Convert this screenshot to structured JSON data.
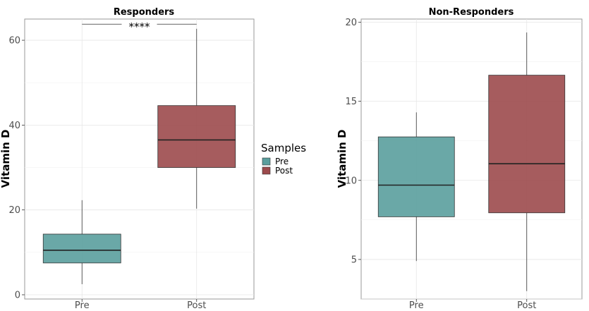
{
  "chart_data": [
    {
      "type": "boxplot",
      "title": "Responders",
      "ylabel": "Vitamin D",
      "xlabel": "",
      "ylim": [
        -1,
        65
      ],
      "yticks": [
        0,
        20,
        40,
        60
      ],
      "categories": [
        "Pre",
        "Post"
      ],
      "boxes": [
        {
          "group": "Pre",
          "min": 2.5,
          "q1": 7.5,
          "median": 10.5,
          "q3": 14.3,
          "max": 22.3
        },
        {
          "group": "Post",
          "min": 20.3,
          "q1": 30.0,
          "median": 36.5,
          "q3": 44.6,
          "max": 62.7
        }
      ],
      "significance": {
        "from": "Pre",
        "to": "Post",
        "value": 63.8,
        "label": "****"
      },
      "grid": true
    },
    {
      "type": "boxplot",
      "title": "Non-Responders",
      "ylabel": "Vitamin D",
      "xlabel": "",
      "ylim": [
        2.5,
        20.2
      ],
      "yticks": [
        5,
        10,
        15,
        20
      ],
      "categories": [
        "Pre",
        "Post"
      ],
      "boxes": [
        {
          "group": "Pre",
          "min": 4.9,
          "q1": 7.7,
          "median": 9.7,
          "q3": 12.75,
          "max": 14.3
        },
        {
          "group": "Post",
          "min": 3.0,
          "q1": 7.95,
          "median": 11.05,
          "q3": 16.65,
          "max": 19.35
        }
      ],
      "grid": true
    }
  ],
  "legend": {
    "title": "Samples",
    "position": "right",
    "items": [
      {
        "label": "Pre",
        "color": "#5a9e9d"
      },
      {
        "label": "Post",
        "color": "#9c4a4c"
      }
    ]
  },
  "colors": {
    "Pre": "#5a9e9d",
    "Post": "#9c4a4c"
  }
}
